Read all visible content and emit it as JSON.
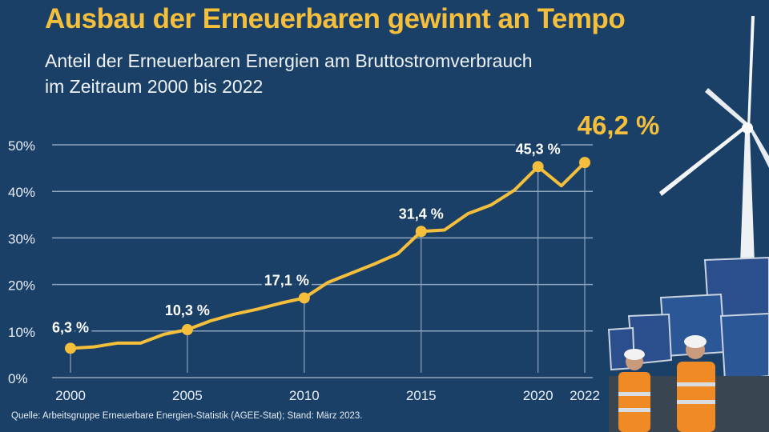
{
  "title": "Ausbau der Erneuerbaren gewinnt an Tempo",
  "subtitle_line1": "Anteil der Erneuerbaren Energien am Bruttostromverbrauch",
  "subtitle_line2": "im Zeitraum 2000 bis 2022",
  "source": "Quelle: Arbeitsgruppe Erneuerbare Energien-Statistik (AGEE-Stat); Stand: März 2023.",
  "colors": {
    "background": "#1a4068",
    "accent": "#f5bf3c",
    "grid": "#8fa4bd",
    "text": "#ffffff"
  },
  "chart_data": {
    "type": "line",
    "title": "Ausbau der Erneuerbaren gewinnt an Tempo",
    "xlabel": "",
    "ylabel": "",
    "ylim": [
      0,
      50
    ],
    "grid": true,
    "y_ticks": [
      "0%",
      "10%",
      "20%",
      "30%",
      "40%",
      "50%"
    ],
    "x_ticks": [
      "2000",
      "2005",
      "2010",
      "2015",
      "2020",
      "2022"
    ],
    "x": [
      2000,
      2001,
      2002,
      2003,
      2004,
      2005,
      2006,
      2007,
      2008,
      2009,
      2010,
      2011,
      2012,
      2013,
      2014,
      2015,
      2016,
      2017,
      2018,
      2019,
      2020,
      2021,
      2022
    ],
    "values": [
      6.3,
      6.6,
      7.4,
      7.4,
      9.3,
      10.3,
      12.2,
      13.6,
      14.7,
      16.0,
      17.1,
      20.4,
      22.4,
      24.4,
      26.6,
      31.4,
      31.7,
      35.2,
      37.1,
      40.3,
      45.3,
      41.2,
      46.2
    ],
    "annotations": [
      {
        "year": 2000,
        "label": "6,3 %"
      },
      {
        "year": 2005,
        "label": "10,3 %"
      },
      {
        "year": 2010,
        "label": "17,1 %"
      },
      {
        "year": 2015,
        "label": "31,4 %"
      },
      {
        "year": 2020,
        "label": "45,3 %"
      },
      {
        "year": 2022,
        "label": "46,2 %",
        "highlight": true
      }
    ]
  }
}
